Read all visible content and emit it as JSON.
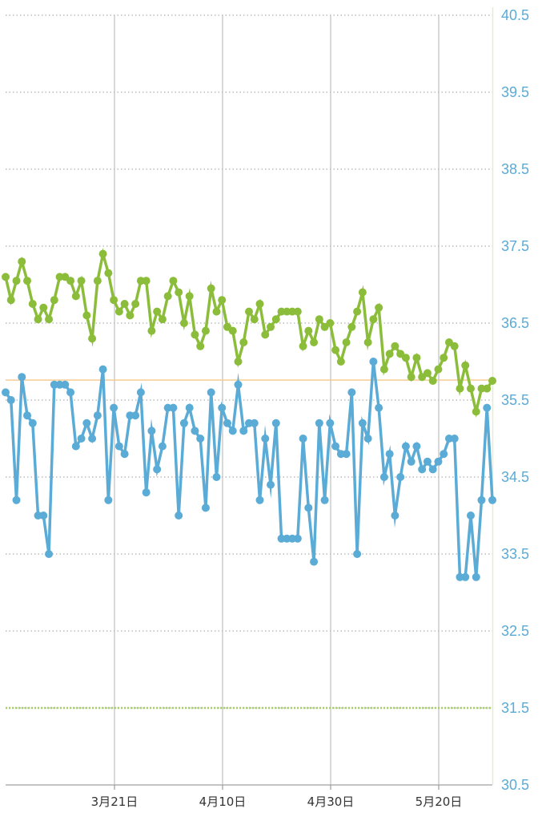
{
  "chart_data": {
    "type": "line",
    "title": "",
    "xlabel": "",
    "ylabel": "",
    "ylim": [
      30.5,
      40.5
    ],
    "y_ticks": [
      "40.5",
      "39.5",
      "38.5",
      "37.5",
      "36.5",
      "35.5",
      "34.5",
      "33.5",
      "32.5",
      "31.5",
      "30.5"
    ],
    "x_ticks": [
      "3月21日",
      "4月10日",
      "4月30日",
      "5月20日"
    ],
    "reference_lines": [
      {
        "value": 35.76,
        "color": "#f5c58a",
        "style": "solid"
      },
      {
        "value": 31.5,
        "color": "#a6cf62",
        "style": "dashed"
      }
    ],
    "grid": true,
    "series": [
      {
        "color": "#8bbd3a",
        "values": [
          37.1,
          36.8,
          37.05,
          37.3,
          37.05,
          36.75,
          36.55,
          36.7,
          36.55,
          36.8,
          37.1,
          37.1,
          37.05,
          36.85,
          37.05,
          36.6,
          36.3,
          37.05,
          37.4,
          37.15,
          36.8,
          36.65,
          36.75,
          36.6,
          36.75,
          37.05,
          37.05,
          36.4,
          36.65,
          36.55,
          36.85,
          37.05,
          36.9,
          36.5,
          36.85,
          36.35,
          36.2,
          36.4,
          36.95,
          36.65,
          36.8,
          36.45,
          36.4,
          36.0,
          36.25,
          36.65,
          36.55,
          36.75,
          36.35,
          36.45,
          36.55,
          36.65,
          36.65,
          36.65,
          36.65,
          36.2,
          36.4,
          36.25,
          36.55,
          36.45,
          36.5,
          36.15,
          36.0,
          36.25,
          36.45,
          36.65,
          36.9,
          36.25,
          36.55,
          36.7,
          35.9,
          36.1,
          36.2,
          36.1,
          36.05,
          35.8,
          36.05,
          35.8,
          35.85,
          35.75,
          35.9,
          36.05,
          36.25,
          36.2,
          35.65,
          35.95,
          35.65,
          35.35,
          35.65,
          35.65,
          35.75
        ]
      },
      {
        "color": "#5aabd6",
        "values": [
          35.6,
          35.5,
          34.2,
          35.8,
          35.3,
          35.2,
          34.0,
          34.0,
          33.5,
          35.7,
          35.7,
          35.7,
          35.6,
          34.9,
          35.0,
          35.2,
          35.0,
          35.3,
          35.9,
          34.2,
          35.4,
          34.9,
          34.8,
          35.3,
          35.3,
          35.6,
          34.3,
          35.1,
          34.6,
          34.9,
          35.4,
          35.4,
          34.0,
          35.2,
          35.4,
          35.1,
          35.0,
          34.1,
          35.6,
          34.5,
          35.4,
          35.2,
          35.1,
          35.7,
          35.1,
          35.2,
          35.2,
          34.2,
          35.0,
          34.4,
          35.2,
          33.7,
          33.7,
          33.7,
          33.7,
          35.0,
          34.1,
          33.4,
          35.2,
          34.2,
          35.2,
          34.9,
          34.8,
          34.8,
          35.6,
          33.5,
          35.2,
          35.0,
          36.0,
          35.4,
          34.5,
          34.8,
          34.0,
          34.5,
          34.9,
          34.7,
          34.9,
          34.6,
          34.7,
          34.6,
          34.7,
          34.8,
          35.0,
          35.0,
          33.2,
          33.2,
          34.0,
          33.2,
          34.2,
          35.4,
          34.2
        ]
      }
    ]
  }
}
